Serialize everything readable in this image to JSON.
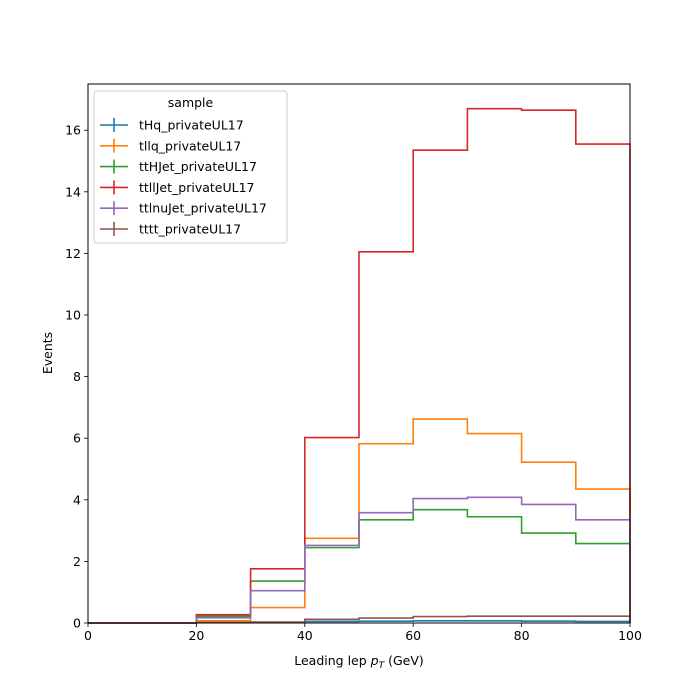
{
  "chart_data": {
    "type": "line",
    "drawstyle": "steps",
    "xlabel_main": "Leading lep ",
    "xlabel_sym": "p",
    "xlabel_sub": "T",
    "xlabel_unit": " (GeV)",
    "ylabel": "Events",
    "xlim": [
      0,
      100
    ],
    "ylim": [
      0,
      17.5
    ],
    "xticks": [
      0,
      20,
      40,
      60,
      80,
      100
    ],
    "yticks": [
      0,
      2,
      4,
      6,
      8,
      10,
      12,
      14,
      16
    ],
    "bin_edges": [
      0,
      10,
      20,
      30,
      40,
      50,
      60,
      70,
      80,
      90,
      100
    ],
    "legend": {
      "title": "sample",
      "placement": "top-left"
    },
    "series": [
      {
        "name": "tHq_privateUL17",
        "color": "#1f77b4",
        "values": [
          0,
          0,
          0.01,
          0.02,
          0.05,
          0.06,
          0.07,
          0.07,
          0.06,
          0.05
        ]
      },
      {
        "name": "tllq_privateUL17",
        "color": "#ff7f0e",
        "values": [
          0,
          0,
          0.07,
          0.5,
          2.75,
          5.82,
          6.62,
          6.15,
          5.22,
          4.35
        ]
      },
      {
        "name": "ttHJet_privateUL17",
        "color": "#2ca02c",
        "values": [
          0,
          0,
          0.22,
          1.36,
          2.45,
          3.35,
          3.68,
          3.45,
          2.92,
          2.58
        ]
      },
      {
        "name": "ttllJet_privateUL17",
        "color": "#d62728",
        "values": [
          0,
          0,
          0.27,
          1.76,
          6.02,
          12.05,
          15.35,
          16.7,
          16.65,
          15.55
        ]
      },
      {
        "name": "ttlnuJet_privateUL17",
        "color": "#9467bd",
        "values": [
          0,
          0,
          0.17,
          1.05,
          2.52,
          3.58,
          4.04,
          4.08,
          3.85,
          3.35
        ]
      },
      {
        "name": "tttt_privateUL17",
        "color": "#8c564b",
        "values": [
          0,
          0,
          0.02,
          0.03,
          0.12,
          0.16,
          0.21,
          0.22,
          0.22,
          0.22
        ]
      }
    ]
  }
}
